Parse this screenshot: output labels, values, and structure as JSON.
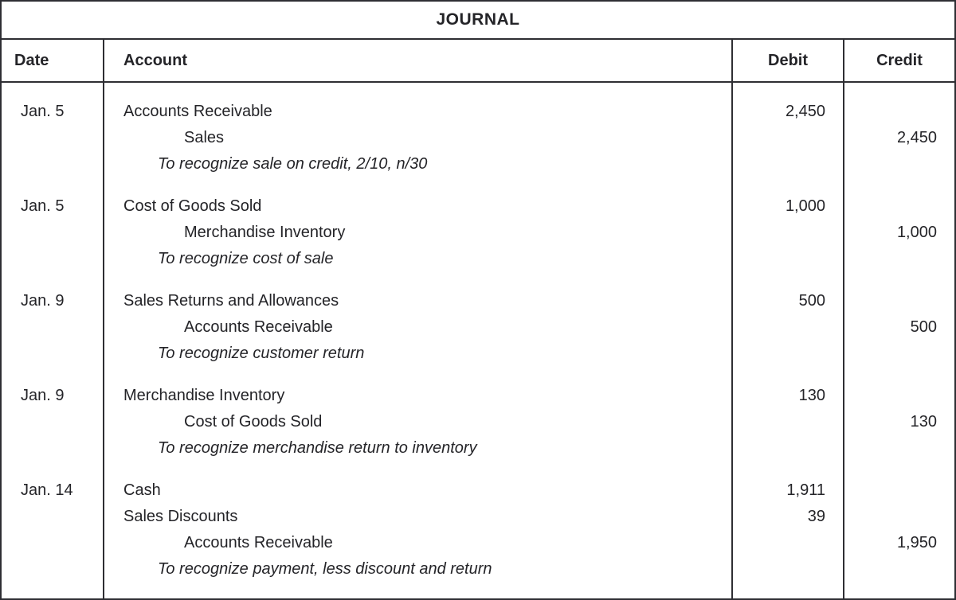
{
  "title": "JOURNAL",
  "columns": {
    "date": "Date",
    "account": "Account",
    "debit": "Debit",
    "credit": "Credit"
  },
  "entries": [
    {
      "date": "Jan. 5",
      "lines": [
        {
          "account": "Accounts Receivable",
          "indent": "none",
          "debit": "2,450",
          "credit": ""
        },
        {
          "account": "Sales",
          "indent": "credit",
          "debit": "",
          "credit": "2,450"
        },
        {
          "account": "To recognize sale on credit, 2/10, n/30",
          "indent": "description",
          "italic": true,
          "debit": "",
          "credit": ""
        }
      ]
    },
    {
      "date": "Jan. 5",
      "lines": [
        {
          "account": "Cost of Goods Sold",
          "indent": "none",
          "debit": "1,000",
          "credit": ""
        },
        {
          "account": "Merchandise Inventory",
          "indent": "credit",
          "debit": "",
          "credit": "1,000"
        },
        {
          "account": "To recognize cost of sale",
          "indent": "description",
          "italic": true,
          "debit": "",
          "credit": ""
        }
      ]
    },
    {
      "date": "Jan. 9",
      "lines": [
        {
          "account": "Sales Returns and Allowances",
          "indent": "none",
          "debit": "500",
          "credit": ""
        },
        {
          "account": "Accounts Receivable",
          "indent": "credit",
          "debit": "",
          "credit": "500"
        },
        {
          "account": "To recognize customer return",
          "indent": "description",
          "italic": true,
          "debit": "",
          "credit": ""
        }
      ]
    },
    {
      "date": "Jan. 9",
      "lines": [
        {
          "account": "Merchandise Inventory",
          "indent": "none",
          "debit": "130",
          "credit": ""
        },
        {
          "account": "Cost of Goods Sold",
          "indent": "credit",
          "debit": "",
          "credit": "130"
        },
        {
          "account": "To recognize merchandise return to inventory",
          "indent": "description",
          "italic": true,
          "debit": "",
          "credit": ""
        }
      ]
    },
    {
      "date": "Jan. 14",
      "lines": [
        {
          "account": "Cash",
          "indent": "none",
          "debit": "1,911",
          "credit": ""
        },
        {
          "account": "Sales Discounts",
          "indent": "none",
          "debit": "39",
          "credit": ""
        },
        {
          "account": "Accounts Receivable",
          "indent": "credit",
          "debit": "",
          "credit": "1,950"
        },
        {
          "account": "To recognize payment, less discount and return",
          "indent": "description",
          "italic": true,
          "debit": "",
          "credit": ""
        }
      ]
    }
  ]
}
